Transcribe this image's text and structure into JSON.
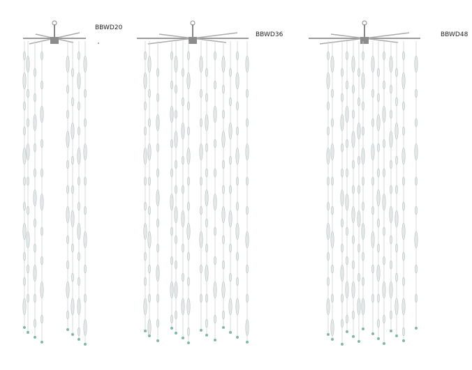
{
  "products": [
    {
      "label": "BBWD20"
    },
    {
      "label": "BBWD36"
    },
    {
      "label": "BBWD48"
    }
  ]
}
